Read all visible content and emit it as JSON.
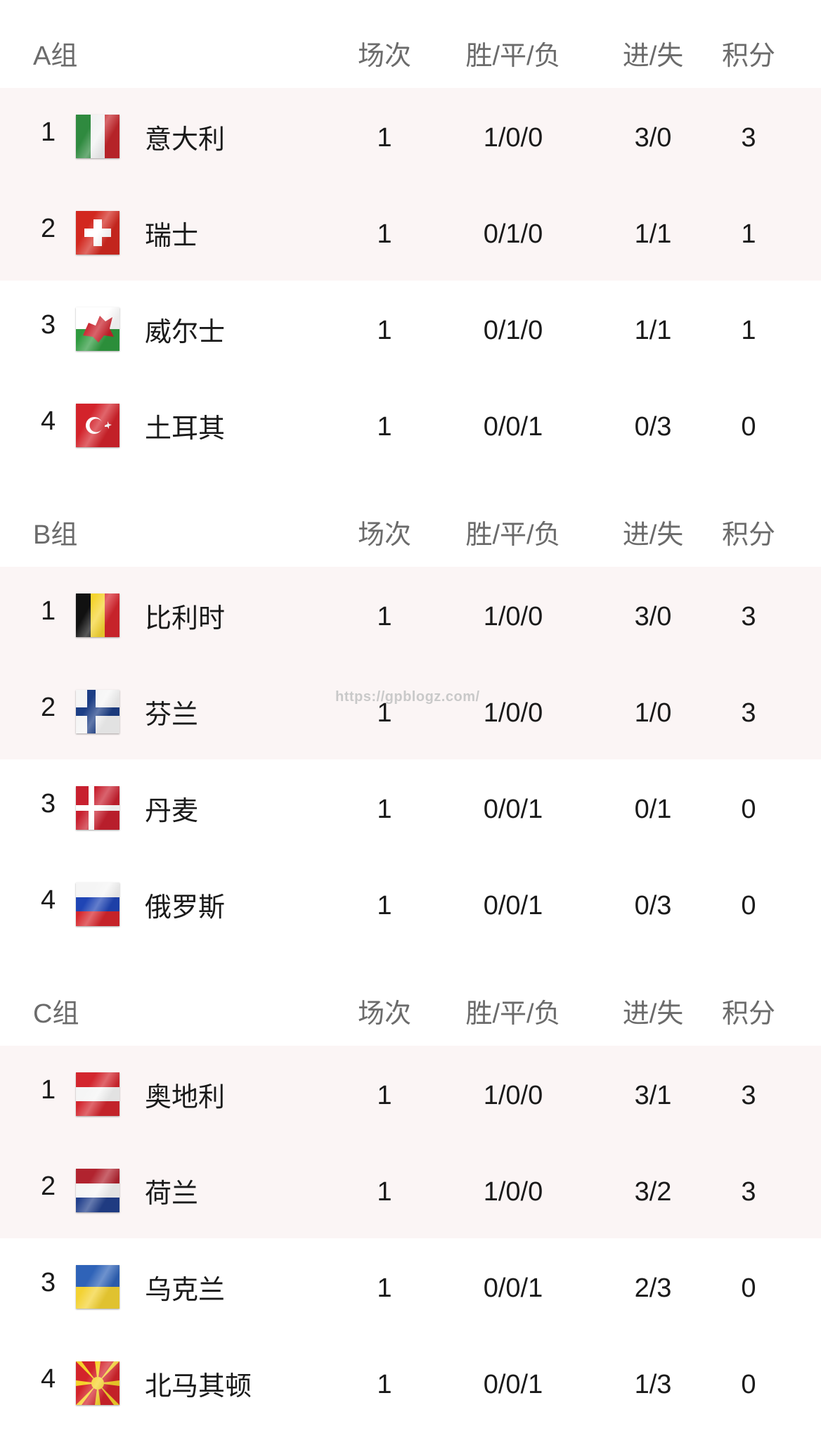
{
  "headers": {
    "played": "场次",
    "wdl": "胜/平/负",
    "goals": "进/失",
    "points": "积分"
  },
  "groups": [
    {
      "title": "A组",
      "teams": [
        {
          "rank": "1",
          "name": "意大利",
          "flag": "italy-flag",
          "played": "1",
          "wdl": "1/0/0",
          "goals": "3/0",
          "points": "3"
        },
        {
          "rank": "2",
          "name": "瑞士",
          "flag": "switzerland-flag",
          "played": "1",
          "wdl": "0/1/0",
          "goals": "1/1",
          "points": "1"
        },
        {
          "rank": "3",
          "name": "威尔士",
          "flag": "wales-flag",
          "played": "1",
          "wdl": "0/1/0",
          "goals": "1/1",
          "points": "1"
        },
        {
          "rank": "4",
          "name": "土耳其",
          "flag": "turkey-flag",
          "played": "1",
          "wdl": "0/0/1",
          "goals": "0/3",
          "points": "0"
        }
      ]
    },
    {
      "title": "B组",
      "teams": [
        {
          "rank": "1",
          "name": "比利时",
          "flag": "belgium-flag",
          "played": "1",
          "wdl": "1/0/0",
          "goals": "3/0",
          "points": "3"
        },
        {
          "rank": "2",
          "name": "芬兰",
          "flag": "finland-flag",
          "played": "1",
          "wdl": "1/0/0",
          "goals": "1/0",
          "points": "3"
        },
        {
          "rank": "3",
          "name": "丹麦",
          "flag": "denmark-flag",
          "played": "1",
          "wdl": "0/0/1",
          "goals": "0/1",
          "points": "0"
        },
        {
          "rank": "4",
          "name": "俄罗斯",
          "flag": "russia-flag",
          "played": "1",
          "wdl": "0/0/1",
          "goals": "0/3",
          "points": "0"
        }
      ]
    },
    {
      "title": "C组",
      "teams": [
        {
          "rank": "1",
          "name": "奥地利",
          "flag": "austria-flag",
          "played": "1",
          "wdl": "1/0/0",
          "goals": "3/1",
          "points": "3"
        },
        {
          "rank": "2",
          "name": "荷兰",
          "flag": "netherlands-flag",
          "played": "1",
          "wdl": "1/0/0",
          "goals": "3/2",
          "points": "3"
        },
        {
          "rank": "3",
          "name": "乌克兰",
          "flag": "ukraine-flag",
          "played": "1",
          "wdl": "0/0/1",
          "goals": "2/3",
          "points": "0"
        },
        {
          "rank": "4",
          "name": "北马其顿",
          "flag": "north-macedonia-flag",
          "played": "1",
          "wdl": "0/0/1",
          "goals": "1/3",
          "points": "0"
        }
      ]
    }
  ],
  "colors": {
    "highlight_row": "#fbf5f5",
    "header_text": "#6b6b6b"
  },
  "watermark": "https://gpblogz.com/"
}
